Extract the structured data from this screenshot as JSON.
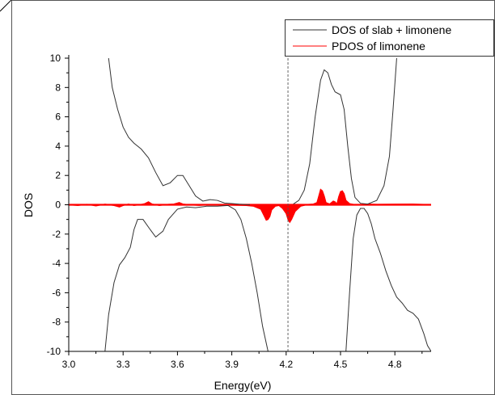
{
  "chart_data": {
    "type": "line",
    "title": "",
    "xlabel": "Energy(eV)",
    "ylabel": "DOS",
    "xlim": [
      3.0,
      5.0
    ],
    "ylim": [
      -10,
      10
    ],
    "xticks": [
      "3.0",
      "3.3",
      "3.6",
      "3.9",
      "4.2",
      "4.5",
      "4.8"
    ],
    "yticks": [
      "10",
      "8",
      "6",
      "4",
      "2",
      "0",
      "-2",
      "-4",
      "-6",
      "-8",
      "-10"
    ],
    "x_tick_values": [
      3.0,
      3.3,
      3.6,
      3.9,
      4.2,
      4.5,
      4.8
    ],
    "y_tick_values": [
      10,
      8,
      6,
      4,
      2,
      0,
      -2,
      -4,
      -6,
      -8,
      -10
    ],
    "reference_line_x": 4.21,
    "grid": false,
    "legend_position": "top-right",
    "colors": {
      "dos": "#333333",
      "pdos": "#ff0000",
      "axis": "#000000",
      "refline": "#555555"
    },
    "series": [
      {
        "name": "DOS of slab + limonene",
        "color": "#333333",
        "segments": [
          {
            "x": [
              3.22,
              3.24,
              3.27,
              3.3,
              3.33,
              3.36,
              3.4,
              3.44,
              3.48,
              3.52,
              3.56,
              3.6,
              3.63,
              3.66,
              3.7,
              3.74,
              3.78,
              3.82,
              3.86,
              3.9,
              3.94,
              3.97,
              4.0
            ],
            "y": [
              10,
              8.0,
              6.5,
              5.3,
              4.6,
              4.2,
              3.8,
              3.2,
              2.2,
              1.3,
              1.5,
              2.0,
              2.0,
              1.4,
              0.6,
              0.25,
              0.35,
              0.3,
              0.12,
              0.08,
              0.04,
              0.02,
              0.0
            ]
          },
          {
            "x": [
              4.24,
              4.27,
              4.3,
              4.33,
              4.36,
              4.39,
              4.41,
              4.43,
              4.45,
              4.47,
              4.5,
              4.52,
              4.54,
              4.56,
              4.58,
              4.61,
              4.65,
              4.7,
              4.74,
              4.77,
              4.79,
              4.81
            ],
            "y": [
              0.05,
              0.3,
              1.0,
              2.8,
              6.0,
              8.5,
              9.2,
              9.0,
              8.2,
              7.7,
              7.5,
              6.5,
              4.0,
              1.8,
              0.5,
              0.1,
              0.05,
              0.3,
              1.3,
              3.3,
              6.5,
              10
            ]
          },
          {
            "x": [
              3.2,
              3.22,
              3.25,
              3.28,
              3.31,
              3.34,
              3.36,
              3.38,
              3.41,
              3.45,
              3.48,
              3.52,
              3.55,
              3.6,
              3.65,
              3.7,
              3.76,
              3.82,
              3.88,
              3.92,
              3.95,
              3.98,
              4.01,
              4.04,
              4.07,
              4.1
            ],
            "y": [
              -10,
              -7.5,
              -5.3,
              -4.1,
              -3.6,
              -2.9,
              -1.7,
              -1.0,
              -1.0,
              -1.7,
              -2.2,
              -1.8,
              -1.0,
              -0.3,
              -0.15,
              -0.2,
              -0.1,
              -0.1,
              -0.05,
              -0.35,
              -1.0,
              -2.3,
              -4.0,
              -6.0,
              -8.3,
              -10
            ]
          },
          {
            "x": [
              4.53,
              4.55,
              4.57,
              4.59,
              4.61,
              4.63,
              4.65,
              4.67,
              4.69,
              4.72,
              4.75,
              4.78,
              4.81,
              4.84,
              4.87,
              4.9,
              4.93,
              4.96,
              4.98,
              5.0
            ],
            "y": [
              -10,
              -6.0,
              -2.3,
              -0.7,
              -0.25,
              -0.25,
              -0.6,
              -1.3,
              -2.3,
              -3.3,
              -4.5,
              -5.5,
              -6.3,
              -6.7,
              -7.2,
              -7.4,
              -7.8,
              -8.8,
              -9.6,
              -10
            ]
          }
        ]
      },
      {
        "name": "PDOS of limonene",
        "color": "#ff0000",
        "x": [
          3.0,
          3.05,
          3.1,
          3.15,
          3.2,
          3.25,
          3.28,
          3.3,
          3.33,
          3.36,
          3.4,
          3.42,
          3.44,
          3.46,
          3.5,
          3.55,
          3.58,
          3.61,
          3.63,
          3.66,
          3.72,
          3.8,
          3.9,
          3.98,
          4.02,
          4.06,
          4.08,
          4.09,
          4.1,
          4.11,
          4.12,
          4.14,
          4.16,
          4.18,
          4.2,
          4.21,
          4.22,
          4.23,
          4.25,
          4.28,
          4.32,
          4.35,
          4.37,
          4.38,
          4.39,
          4.4,
          4.41,
          4.42,
          4.44,
          4.46,
          4.47,
          4.48,
          4.49,
          4.5,
          4.51,
          4.52,
          4.53,
          4.55,
          4.57,
          4.6,
          4.65,
          4.7,
          4.8,
          4.9,
          5.0
        ],
        "y": [
          0,
          -0.05,
          0.03,
          -0.08,
          0.04,
          -0.05,
          -0.15,
          -0.05,
          0.05,
          -0.05,
          0.02,
          0.08,
          0.2,
          0.05,
          -0.05,
          0.03,
          0.05,
          0.15,
          0.05,
          0.0,
          -0.04,
          0.02,
          -0.03,
          -0.05,
          -0.1,
          -0.3,
          -0.8,
          -1.05,
          -1.0,
          -0.8,
          -0.35,
          -0.1,
          -0.05,
          -0.25,
          -0.6,
          -1.0,
          -1.2,
          -1.0,
          -0.45,
          -0.1,
          0.02,
          0.05,
          0.15,
          0.6,
          1.05,
          0.95,
          0.6,
          0.15,
          0.05,
          0.25,
          0.2,
          0.05,
          0.55,
          0.9,
          0.95,
          0.75,
          0.3,
          0.08,
          0.03,
          -0.02,
          0.05,
          0.03,
          0.04,
          0.05,
          0.0
        ]
      }
    ]
  }
}
